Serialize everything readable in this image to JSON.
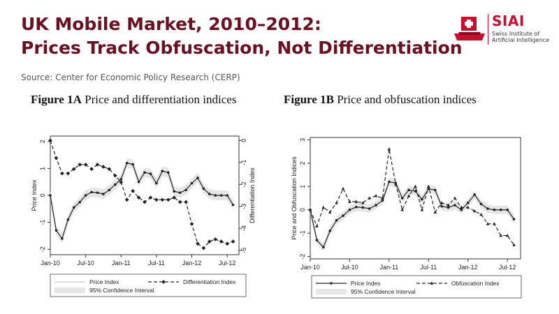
{
  "header": {
    "title_line1": "UK Mobile Market, 2010–2012:",
    "title_line2": "Prices Track Obfuscation, Not Differentiation",
    "source": "Source: Center for Economic Policy Research (CERP)"
  },
  "logo": {
    "name": "SIAI",
    "sub1": "Swiss Institute of",
    "sub2": "Artificial Intelligence"
  },
  "colors": {
    "title": "#6b1020",
    "brand": "#c8102e",
    "band": "#e6e6e6",
    "line": "#222222"
  },
  "chart_data": [
    {
      "id": "fig1a",
      "type": "line",
      "fig_label": "Figure 1A",
      "title": "Price and differentiation indices",
      "xlabel": "",
      "ylabel": "Price Index",
      "y2label": "Differentiation Index",
      "x_ticks": [
        "Jan-10",
        "Jul-10",
        "Jan-11",
        "Jul-11",
        "Jan-12",
        "Jul-12"
      ],
      "xlim": [
        0,
        32
      ],
      "ylim": [
        -2.2,
        2.2
      ],
      "y_ticks": [
        "2",
        "1",
        "0",
        "-1",
        "-2"
      ],
      "y2lim": [
        -5.2,
        0.2
      ],
      "y2_ticks": [
        "0",
        "-1",
        "-2",
        "-3",
        "-4",
        "-5"
      ],
      "legend": [
        "Price Index",
        "Differentiation Index",
        "95% Confidence Interval"
      ],
      "legend_position": "bottom",
      "series": [
        {
          "name": "Price Index",
          "axis": "left",
          "style": "solid",
          "x": [
            0,
            1,
            2,
            3,
            4,
            5,
            6,
            7,
            8,
            9,
            10,
            11,
            12,
            13,
            14,
            15,
            16,
            17,
            18,
            19,
            20,
            21,
            22,
            23,
            24,
            25,
            26,
            27,
            28,
            29,
            30,
            31
          ],
          "values": [
            0.0,
            -1.3,
            -1.6,
            -0.9,
            -0.45,
            -0.25,
            0.0,
            0.12,
            0.1,
            0.05,
            0.2,
            0.4,
            0.6,
            1.2,
            1.15,
            0.5,
            0.85,
            0.8,
            0.45,
            0.9,
            0.85,
            0.15,
            0.1,
            0.2,
            0.45,
            0.65,
            0.25,
            0.05,
            0.0,
            0.0,
            0.0,
            -0.35
          ]
        },
        {
          "name": "Differentiation Index",
          "axis": "right",
          "style": "dashed",
          "x": [
            0,
            1,
            2,
            3,
            4,
            5,
            6,
            7,
            8,
            9,
            10,
            11,
            12,
            13,
            14,
            15,
            16,
            17,
            18,
            19,
            20,
            21,
            22,
            23,
            24,
            25,
            26,
            27,
            28,
            29,
            30,
            31
          ],
          "values": [
            0.0,
            -0.8,
            -1.5,
            -1.5,
            -1.3,
            -1.1,
            -1.1,
            -1.3,
            -1.1,
            -1.2,
            -1.3,
            -1.6,
            -1.9,
            -2.7,
            -2.3,
            -2.6,
            -2.8,
            -2.6,
            -2.7,
            -2.7,
            -2.7,
            -2.6,
            -2.8,
            -2.8,
            -3.8,
            -4.7,
            -4.9,
            -4.6,
            -4.5,
            -4.6,
            -4.7,
            -4.6
          ]
        }
      ]
    },
    {
      "id": "fig1b",
      "type": "line",
      "fig_label": "Figure 1B",
      "title": "Price and obfuscation indices",
      "xlabel": "",
      "ylabel": "Price and Obfuscation Indices",
      "x_ticks": [
        "Jan-10",
        "Jul-10",
        "Jan-11",
        "Jul-11",
        "Jan-12",
        "Jul-12"
      ],
      "xlim": [
        0,
        32
      ],
      "ylim": [
        -2.1,
        3.1
      ],
      "y_ticks": [
        "3",
        "2",
        "1",
        "0",
        "-1",
        "-2"
      ],
      "legend": [
        "Price Index",
        "Obfuscation Index",
        "95% Confidence Interval"
      ],
      "legend_position": "bottom",
      "series": [
        {
          "name": "Price Index",
          "axis": "left",
          "style": "solid",
          "x": [
            0,
            1,
            2,
            3,
            4,
            5,
            6,
            7,
            8,
            9,
            10,
            11,
            12,
            13,
            14,
            15,
            16,
            17,
            18,
            19,
            20,
            21,
            22,
            23,
            24,
            25,
            26,
            27,
            28,
            29,
            30,
            31
          ],
          "values": [
            0.0,
            -1.3,
            -1.6,
            -0.9,
            -0.45,
            -0.25,
            0.0,
            0.12,
            0.1,
            0.05,
            0.2,
            0.4,
            1.2,
            1.15,
            0.5,
            0.85,
            0.8,
            0.45,
            0.9,
            0.85,
            0.15,
            0.1,
            0.2,
            0.0,
            0.3,
            0.65,
            0.25,
            0.05,
            0.0,
            0.0,
            0.0,
            -0.4
          ]
        },
        {
          "name": "Obfuscation Index",
          "axis": "left",
          "style": "dashed",
          "x": [
            0,
            1,
            2,
            3,
            4,
            5,
            6,
            7,
            8,
            9,
            10,
            11,
            12,
            13,
            14,
            15,
            16,
            17,
            18,
            19,
            20,
            21,
            22,
            23,
            24,
            25,
            26,
            27,
            28,
            29,
            30,
            31
          ],
          "values": [
            0.0,
            -0.7,
            0.1,
            -0.1,
            0.3,
            0.9,
            0.35,
            0.35,
            0.3,
            0.5,
            0.6,
            0.5,
            2.6,
            1.1,
            0.0,
            0.6,
            1.0,
            0.0,
            1.0,
            -0.1,
            0.3,
            0.2,
            0.5,
            0.1,
            0.1,
            -0.05,
            -0.2,
            -0.6,
            -0.6,
            -1.1,
            -1.1,
            -1.5
          ]
        }
      ]
    }
  ]
}
